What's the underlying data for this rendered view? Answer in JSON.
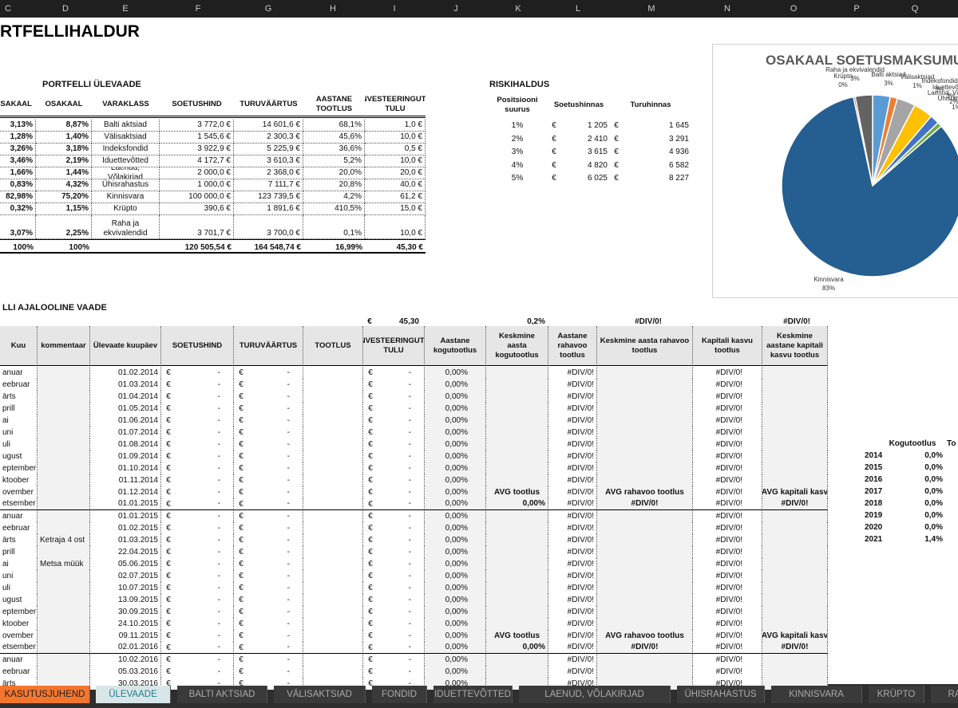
{
  "column_headers": [
    "C",
    "D",
    "E",
    "F",
    "G",
    "H",
    "I",
    "J",
    "K",
    "L",
    "M",
    "N",
    "O",
    "P",
    "Q"
  ],
  "title": "RTFELLIHALDUR",
  "overview": {
    "title": "PORTFELLI ÜLEVAADE",
    "headers": [
      "OSAKAAL",
      "OSAKAAL",
      "VARAKLASS",
      "SOETUSHIND",
      "TURUVÄÄRTUS",
      "AASTANE TOOTLUS",
      "INVESTEERINGUTE TULU"
    ],
    "rows": [
      [
        "3,13%",
        "8,87%",
        "Balti aktsiad",
        "3 772,0 €",
        "14 601,6 €",
        "68,1%",
        "1,0 €"
      ],
      [
        "1,28%",
        "1,40%",
        "Välisaktsiad",
        "1 545,6 €",
        "2 300,3 €",
        "45,6%",
        "10,0 €"
      ],
      [
        "3,26%",
        "3,18%",
        "Indeksfondid",
        "3 922,9 €",
        "5 225,9 €",
        "36,6%",
        "0,5 €"
      ],
      [
        "3,46%",
        "2,19%",
        "Iduettevõtted",
        "4 172,7 €",
        "3 610,3 €",
        "5,2%",
        "10,0 €"
      ],
      [
        "1,66%",
        "1,44%",
        "Laenud, Võlakirjad",
        "2 000,0 €",
        "2 368,0 €",
        "20,0%",
        "20,0 €"
      ],
      [
        "0,83%",
        "4,32%",
        "Ühisrahastus",
        "1 000,0 €",
        "7 111,7 €",
        "20,8%",
        "40,0 €"
      ],
      [
        "82,98%",
        "75,20%",
        "Kinnisvara",
        "100 000,0 €",
        "123 739,5 €",
        "4,2%",
        "61,2 €"
      ],
      [
        "0,32%",
        "1,15%",
        "Krüpto",
        "390,6 €",
        "1 891,6 €",
        "410,5%",
        "15,0 €"
      ],
      [
        "3,07%",
        "2,25%",
        "Raha ja ekvivalendid",
        "3 701,7 €",
        "3 700,0 €",
        "0,1%",
        "10,0 €"
      ]
    ],
    "totals": [
      "100%",
      "100%",
      null,
      "120 505,54 €",
      "164 548,74 €",
      "16,99%",
      "45,30 €"
    ]
  },
  "risk": {
    "title": "RISKIHALDUS",
    "currency": "€",
    "headers": [
      "Positsiooni suurus",
      "Soetushinnas",
      "Turuhinnas"
    ],
    "rows": [
      [
        "1%",
        "1 205",
        "1 645"
      ],
      [
        "2%",
        "2 410",
        "3 291"
      ],
      [
        "3%",
        "3 615",
        "4 936"
      ],
      [
        "4%",
        "4 820",
        "6 582"
      ],
      [
        "5%",
        "6 025",
        "8 227"
      ]
    ]
  },
  "chart_data": {
    "type": "pie",
    "title": "OSAKAAL SOETUSMAKSUMU",
    "categories": [
      "Balti aktsiad",
      "Välisaktsiad",
      "Indeksfondid",
      "Iduettevõtted",
      "Laenud, Võlakirjad",
      "Ühisrahastus",
      "Kinnisvara",
      "Krüpto",
      "Raha ja ekvivalendid"
    ],
    "values": [
      3.13,
      1.28,
      3.26,
      3.46,
      1.66,
      0.83,
      82.98,
      0.32,
      3.07
    ],
    "value_labels": [
      "3%",
      "1%",
      "3%",
      "3%",
      "2%",
      "1%",
      "83%",
      "0%",
      "3%"
    ],
    "colors": [
      "#5b9bd5",
      "#ed7d31",
      "#a5a5a5",
      "#ffc000",
      "#4472c4",
      "#70ad47",
      "#255e91",
      "#9e480e",
      "#636363"
    ]
  },
  "history": {
    "title": "LLI AJALOOLINE VAADE",
    "currency": "€",
    "summary": [
      "45,30",
      "0,2%",
      "#DIV/0!",
      "#DIV/0!"
    ],
    "headers": [
      "Kuu",
      "kommentaar",
      "Ülevaate kuupäev",
      "SOETUSHIND",
      "TURUVÄÄRTUS",
      "TOOTLUS",
      "INVESTEERINGUTE TULU",
      "Aastane kogutootlus",
      "Keskmine aasta kogutootlus",
      "Aastane rahavoo tootlus",
      "Keskmine aasta rahavoo tootlus",
      "Kapitali kasvu tootlus",
      "Keskmine aastane kapitali kasvu tootlus"
    ],
    "rows": [
      [
        "anuar",
        null,
        "01.02.2014",
        "-",
        "-",
        "-",
        "0,00%",
        null,
        "#DIV/0!",
        null,
        "#DIV/0!",
        null
      ],
      [
        "eebruar",
        null,
        "01.03.2014",
        "-",
        "-",
        "-",
        "0,00%",
        null,
        "#DIV/0!",
        null,
        "#DIV/0!",
        null
      ],
      [
        "ärts",
        null,
        "01.04.2014",
        "-",
        "-",
        "-",
        "0,00%",
        null,
        "#DIV/0!",
        null,
        "#DIV/0!",
        null
      ],
      [
        "prill",
        null,
        "01.05.2014",
        "-",
        "-",
        "-",
        "0,00%",
        null,
        "#DIV/0!",
        null,
        "#DIV/0!",
        null
      ],
      [
        "ai",
        null,
        "01.06.2014",
        "-",
        "-",
        "-",
        "0,00%",
        null,
        "#DIV/0!",
        null,
        "#DIV/0!",
        null
      ],
      [
        "uni",
        null,
        "01.07.2014",
        "-",
        "-",
        "-",
        "0,00%",
        null,
        "#DIV/0!",
        null,
        "#DIV/0!",
        null
      ],
      [
        "uli",
        null,
        "01.08.2014",
        "-",
        "-",
        "-",
        "0,00%",
        null,
        "#DIV/0!",
        null,
        "#DIV/0!",
        null
      ],
      [
        "ugust",
        null,
        "01.09.2014",
        "-",
        "-",
        "-",
        "0,00%",
        null,
        "#DIV/0!",
        null,
        "#DIV/0!",
        null
      ],
      [
        "eptember",
        null,
        "01.10.2014",
        "-",
        "-",
        "-",
        "0,00%",
        null,
        "#DIV/0!",
        null,
        "#DIV/0!",
        null
      ],
      [
        "ktoober",
        null,
        "01.11.2014",
        "-",
        "-",
        "-",
        "0,00%",
        null,
        "#DIV/0!",
        null,
        "#DIV/0!",
        null
      ],
      [
        "ovember",
        null,
        "01.12.2014",
        "-",
        "-",
        "-",
        "0,00%",
        "AVG tootlus",
        "#DIV/0!",
        "AVG rahavoo tootlus",
        "#DIV/0!",
        "AVG kapitali kasv"
      ],
      [
        "etsember",
        null,
        "01.01.2015",
        "-",
        "-",
        "-",
        "0,00%",
        "0,00%",
        "#DIV/0!",
        "#DIV/0!",
        "#DIV/0!",
        "#DIV/0!"
      ],
      [
        "anuar",
        null,
        "01.01.2015",
        "-",
        "-",
        "-",
        "0,00%",
        null,
        "#DIV/0!",
        null,
        "#DIV/0!",
        null
      ],
      [
        "eebruar",
        null,
        "01.02.2015",
        "-",
        "-",
        "-",
        "0,00%",
        null,
        "#DIV/0!",
        null,
        "#DIV/0!",
        null
      ],
      [
        "ärts",
        "Ketraja 4 ost",
        "01.03.2015",
        "-",
        "-",
        "-",
        "0,00%",
        null,
        "#DIV/0!",
        null,
        "#DIV/0!",
        null
      ],
      [
        "prill",
        null,
        "22.04.2015",
        "-",
        "-",
        "-",
        "0,00%",
        null,
        "#DIV/0!",
        null,
        "#DIV/0!",
        null
      ],
      [
        "ai",
        "Metsa müük",
        "05.06.2015",
        "-",
        "-",
        "-",
        "0,00%",
        null,
        "#DIV/0!",
        null,
        "#DIV/0!",
        null
      ],
      [
        "uni",
        null,
        "02.07.2015",
        "-",
        "-",
        "-",
        "0,00%",
        null,
        "#DIV/0!",
        null,
        "#DIV/0!",
        null
      ],
      [
        "uli",
        null,
        "10.07.2015",
        "-",
        "-",
        "-",
        "0,00%",
        null,
        "#DIV/0!",
        null,
        "#DIV/0!",
        null
      ],
      [
        "ugust",
        null,
        "13.09.2015",
        "-",
        "-",
        "-",
        "0,00%",
        null,
        "#DIV/0!",
        null,
        "#DIV/0!",
        null
      ],
      [
        "eptember",
        null,
        "30.09.2015",
        "-",
        "-",
        "-",
        "0,00%",
        null,
        "#DIV/0!",
        null,
        "#DIV/0!",
        null
      ],
      [
        "ktoober",
        null,
        "24.10.2015",
        "-",
        "-",
        "-",
        "0,00%",
        null,
        "#DIV/0!",
        null,
        "#DIV/0!",
        null
      ],
      [
        "ovember",
        null,
        "09.11.2015",
        "-",
        "-",
        "-",
        "0,00%",
        "AVG tootlus",
        "#DIV/0!",
        "AVG rahavoo tootlus",
        "#DIV/0!",
        "AVG kapitali kasv"
      ],
      [
        "etsember",
        null,
        "02.01.2016",
        "-",
        "-",
        "-",
        "0,00%",
        "0,00%",
        "#DIV/0!",
        "#DIV/0!",
        "#DIV/0!",
        "#DIV/0!"
      ],
      [
        "anuar",
        null,
        "10.02.2016",
        "-",
        "-",
        "-",
        "0,00%",
        null,
        "#DIV/0!",
        null,
        "#DIV/0!",
        null
      ],
      [
        "eebruar",
        null,
        "05.03.2016",
        "-",
        "-",
        "-",
        "0,00%",
        null,
        "#DIV/0!",
        null,
        "#DIV/0!",
        null
      ],
      [
        "ärts",
        null,
        "30.03.2016",
        "-",
        "-",
        "-",
        "0,00%",
        null,
        "#DIV/0!",
        null,
        "#DIV/0!",
        null
      ]
    ]
  },
  "yearly": {
    "headers": [
      "Kogutootlus",
      "To"
    ],
    "rows": [
      [
        "2014",
        "0,0%"
      ],
      [
        "2015",
        "0,0%"
      ],
      [
        "2016",
        "0,0%"
      ],
      [
        "2017",
        "0,0%"
      ],
      [
        "2018",
        "0,0%"
      ],
      [
        "2019",
        "0,0%"
      ],
      [
        "2020",
        "0,0%"
      ],
      [
        "2021",
        "1,4%"
      ]
    ]
  },
  "tabs": [
    "KASUTUSJUHEND",
    "ÜLEVAADE",
    "BALTI AKTSIAD",
    "VÄLISAKTSIAD",
    "FONDID",
    "IDUETTEVÕTTED",
    "LAENUD, VÕLAKIRJAD",
    "ÜHISRAHASTUS",
    "KINNISVARA",
    "KRÜPTO",
    "RA"
  ]
}
